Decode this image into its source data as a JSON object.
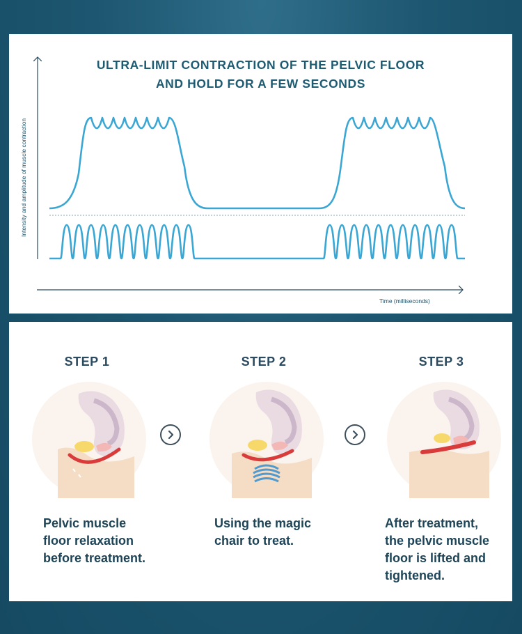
{
  "chart": {
    "title_line1": "ULTRA-LIMIT CONTRACTION OF THE PELVIC FLOOR",
    "title_line2": "AND HOLD FOR A FEW SECONDS",
    "y_axis_label": "Intensity and amplitude of muscle contraction",
    "x_axis_label": "Time (milliseconds)",
    "line_color": "#3aa6d4",
    "dotted_color": "#c5d2d8"
  },
  "steps": [
    {
      "title": "STEP 1",
      "desc": [
        "Pelvic muscle",
        "floor relaxation",
        "before treatment."
      ],
      "illustration": "pelvic-floor-relaxed"
    },
    {
      "title": "STEP 2",
      "desc": [
        "Using the magic",
        "chair to treat."
      ],
      "illustration": "pelvic-floor-treatment-waves"
    },
    {
      "title": "STEP 3",
      "desc": [
        "After treatment,",
        "the pelvic muscle",
        "floor is lifted and",
        "tightened."
      ],
      "illustration": "pelvic-floor-lifted"
    }
  ],
  "icons": {
    "next_arrow": "chevron-right-circle-icon"
  },
  "colors": {
    "background": "#1d5670",
    "title_text": "#1d5b72",
    "muscle_red": "#d93a3a",
    "skin": "#f7e2cc"
  }
}
